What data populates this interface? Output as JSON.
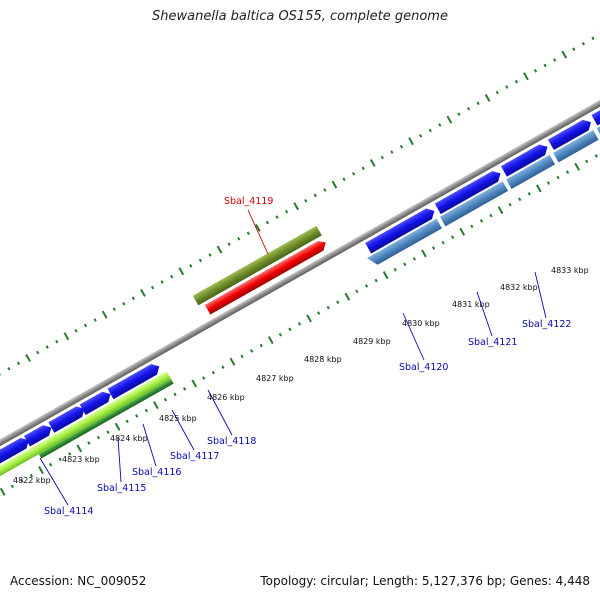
{
  "title": "Shewanella baltica OS155, complete genome",
  "footer": {
    "accession": "Accession: NC_009052",
    "summary": "Topology: circular; Length: 5,127,376 bp; Genes: 4,448"
  },
  "colors": {
    "backbone": "#8c8c8c",
    "tick": "#2a7a2a",
    "cds_forward": "#1212e6",
    "cds_reverse": "#4f86be",
    "rna_light": "#a6f046",
    "rna_dark": "#2e8a2e",
    "highlight_gene": "#ee0000",
    "highlight_bar": "#6e8c2a",
    "highlight_label": "#cc0000",
    "label_blue": "#0a0aaa"
  },
  "scale": {
    "labels": [
      "4822 kbp",
      "4823 kbp",
      "4824 kbp",
      "4825 kbp",
      "4826 kbp",
      "4827 kbp",
      "4828 kbp",
      "4829 kbp",
      "4830 kbp",
      "4831 kbp",
      "4832 kbp",
      "4833 kbp"
    ]
  },
  "gene_labels": [
    {
      "name": "Sbal_4114",
      "highlight": false
    },
    {
      "name": "Sbal_4115",
      "highlight": false
    },
    {
      "name": "Sbal_4116",
      "highlight": false
    },
    {
      "name": "Sbal_4117",
      "highlight": false
    },
    {
      "name": "Sbal_4118",
      "highlight": false
    },
    {
      "name": "Sbal_4119",
      "highlight": true
    },
    {
      "name": "Sbal_4120",
      "highlight": false
    },
    {
      "name": "Sbal_4121",
      "highlight": false
    },
    {
      "name": "Sbal_4122",
      "highlight": false
    }
  ]
}
